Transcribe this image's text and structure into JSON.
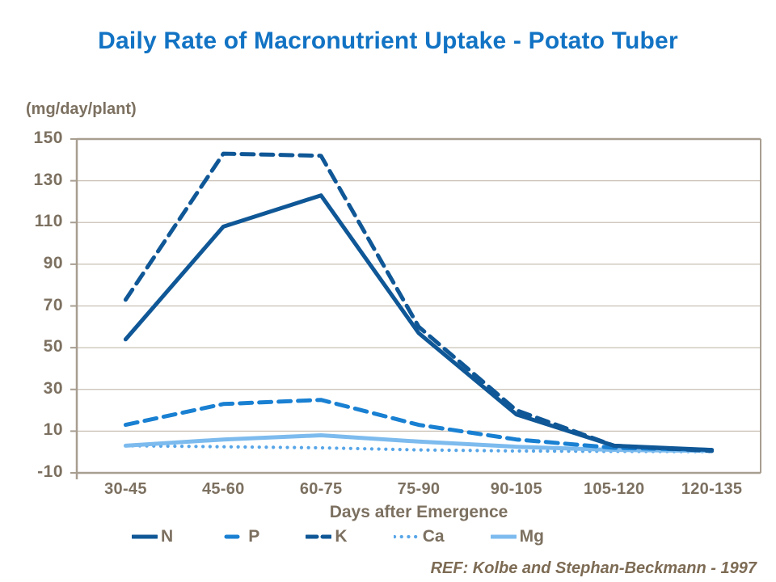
{
  "title": "Daily Rate of Macronutrient Uptake - Potato Tuber",
  "y_axis_unit": "(mg/day/plant)",
  "x_axis_title": "Days after Emergence",
  "reference": "REF: Kolbe and Stephan-Beckmann - 1997",
  "colors": {
    "title_blue": "#1273c4",
    "axis_text": "#7c7060",
    "grid_line": "#c9c0b4",
    "axis_line": "#a89e90",
    "ref_text": "#7d6b54"
  },
  "chart_data": {
    "type": "line",
    "title": "Daily Rate of Macronutrient Uptake - Potato Tuber",
    "xlabel": "Days after Emergence",
    "ylabel": "(mg/day/plant)",
    "categories": [
      "30-45",
      "45-60",
      "60-75",
      "75-90",
      "90-105",
      "105-120",
      "120-135"
    ],
    "y_ticks": [
      150,
      130,
      110,
      90,
      70,
      50,
      30,
      10,
      -10
    ],
    "ylim": [
      -10,
      150
    ],
    "grid": true,
    "legend_position": "bottom",
    "series": [
      {
        "name": "Ca",
        "style": "dotted",
        "color": "#58a6e8",
        "values": [
          3,
          2.5,
          2,
          1,
          0.5,
          0.3,
          0.2
        ]
      },
      {
        "name": "Mg",
        "style": "solid",
        "color": "#7dbbee",
        "values": [
          3,
          6,
          8,
          5,
          2.5,
          1,
          0.5
        ]
      },
      {
        "name": "P",
        "style": "dashed",
        "color": "#1980d2",
        "values": [
          13,
          23,
          25,
          13,
          6,
          2,
          1
        ]
      },
      {
        "name": "N",
        "style": "solid",
        "color": "#0f5796",
        "values": [
          54,
          108,
          123,
          57,
          18,
          3,
          1
        ]
      },
      {
        "name": "K",
        "style": "dashed",
        "color": "#0f5796",
        "values": [
          73,
          143,
          142,
          60,
          20,
          3,
          0.5
        ]
      }
    ],
    "legend_order": [
      "N",
      "P",
      "K",
      "Ca",
      "Mg"
    ]
  }
}
